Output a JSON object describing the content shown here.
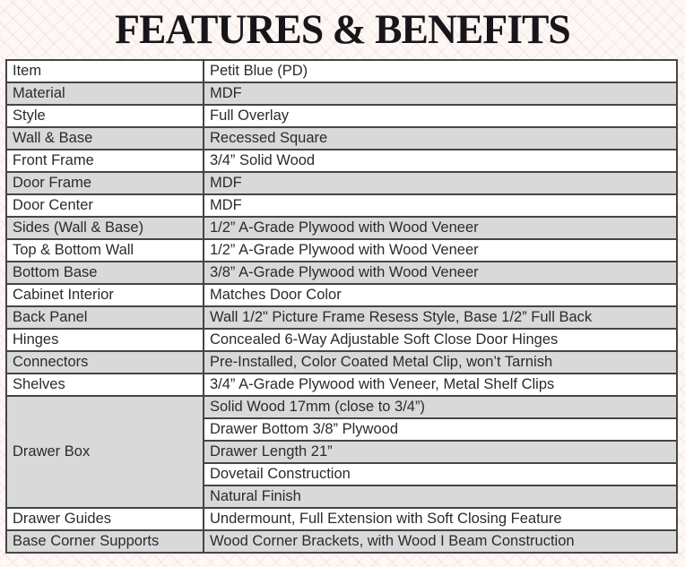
{
  "title": "FEATURES & BENEFITS",
  "table": {
    "rows": [
      {
        "label": "Item",
        "values": [
          "Petit Blue (PD)"
        ]
      },
      {
        "label": "Material",
        "values": [
          "MDF"
        ]
      },
      {
        "label": "Style",
        "values": [
          "Full Overlay"
        ]
      },
      {
        "label": "Wall & Base",
        "values": [
          "Recessed Square"
        ]
      },
      {
        "label": "Front Frame",
        "values": [
          "3/4” Solid Wood"
        ]
      },
      {
        "label": "Door Frame",
        "values": [
          "MDF"
        ]
      },
      {
        "label": "Door Center",
        "values": [
          "MDF"
        ]
      },
      {
        "label": "Sides (Wall & Base)",
        "values": [
          "1/2” A-Grade Plywood with Wood Veneer"
        ]
      },
      {
        "label": "Top & Bottom Wall",
        "values": [
          "1/2” A-Grade Plywood with Wood Veneer"
        ]
      },
      {
        "label": "Bottom Base",
        "values": [
          "3/8” A-Grade Plywood with Wood Veneer"
        ]
      },
      {
        "label": "Cabinet Interior",
        "values": [
          "Matches Door Color"
        ]
      },
      {
        "label": "Back Panel",
        "values": [
          "Wall 1/2\" Picture Frame Resess Style,  Base 1/2” Full Back"
        ]
      },
      {
        "label": "Hinges",
        "values": [
          "Concealed 6-Way Adjustable Soft Close Door Hinges"
        ]
      },
      {
        "label": "Connectors",
        "values": [
          "Pre-Installed, Color Coated Metal Clip, won’t Tarnish"
        ]
      },
      {
        "label": "Shelves",
        "values": [
          "3/4” A-Grade Plywood with Veneer, Metal Shelf Clips"
        ]
      },
      {
        "label": "Drawer Box",
        "values": [
          "Solid Wood 17mm (close to 3/4”)",
          "Drawer Bottom 3/8” Plywood",
          "Drawer Length 21”",
          "Dovetail Construction",
          "Natural Finish"
        ]
      },
      {
        "label": "Drawer Guides",
        "values": [
          "Undermount, Full Extension with Soft Closing Feature"
        ]
      },
      {
        "label": "Base Corner Supports",
        "values": [
          "Wood Corner Brackets, with Wood I Beam Construction"
        ]
      }
    ]
  },
  "colors": {
    "background": "#fdf8f5",
    "pattern_stripe": "#ebd0c7",
    "row_white": "#ffffff",
    "row_gray": "#d9d9d9",
    "border": "#454545",
    "text": "#2b2b2b",
    "title_text": "#18151a"
  }
}
